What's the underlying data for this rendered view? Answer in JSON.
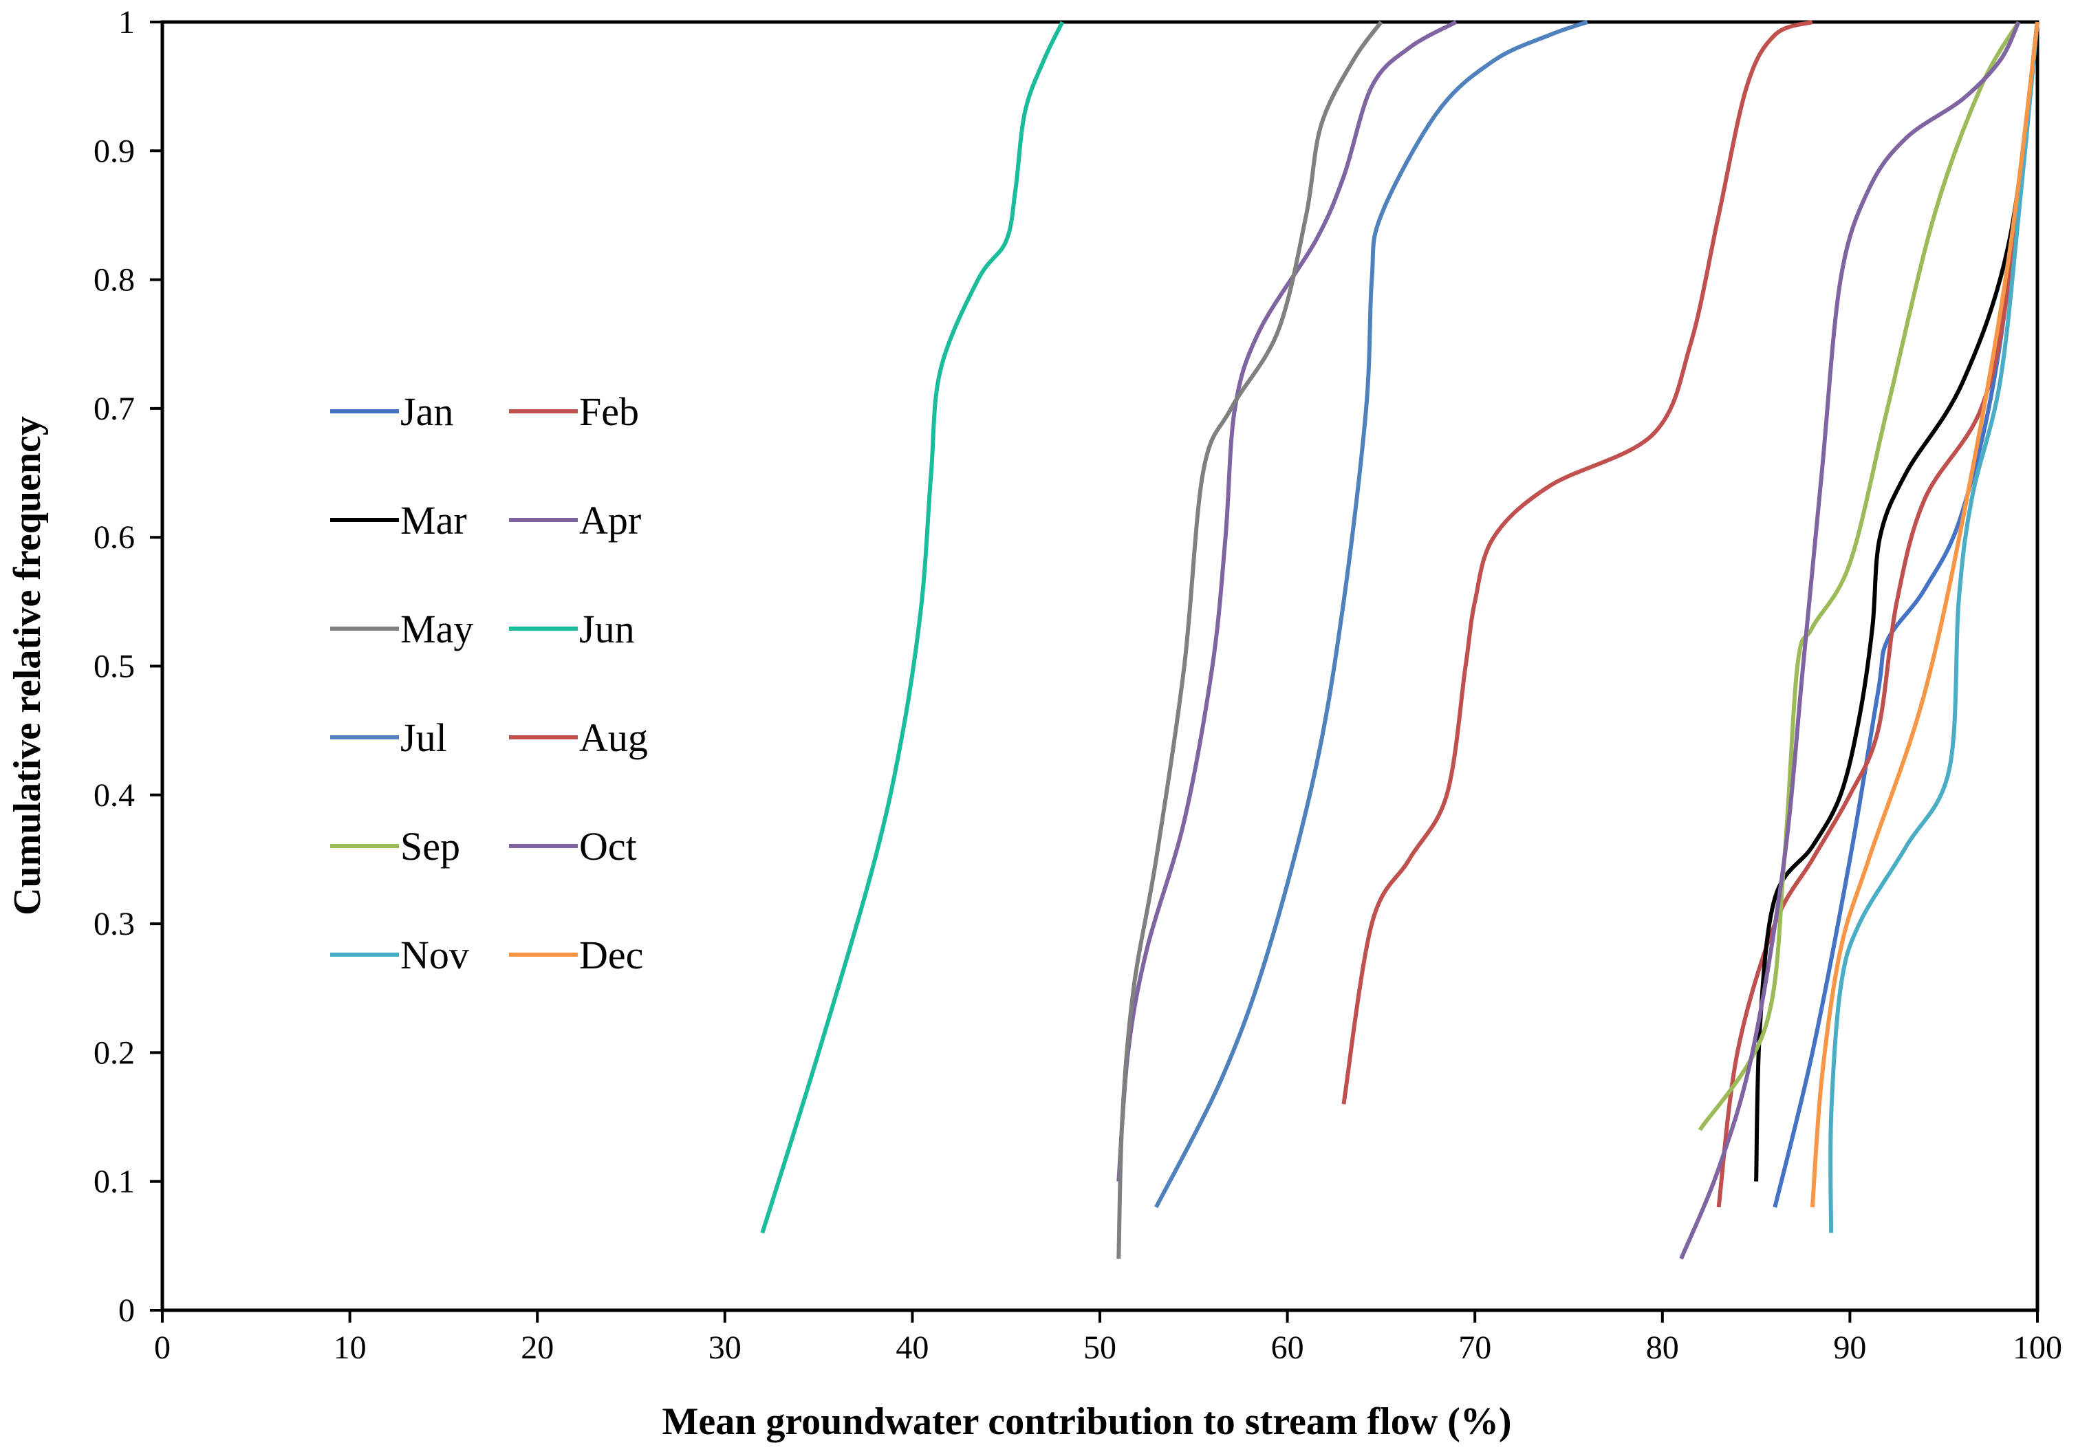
{
  "chart_data": {
    "type": "line",
    "title": "",
    "xlabel": "Mean groundwater contribution to stream flow (%)",
    "ylabel": "Cumulative relative frequency",
    "xlim": [
      0,
      100
    ],
    "ylim": [
      0,
      1
    ],
    "xticks": [
      0,
      10,
      20,
      30,
      40,
      50,
      60,
      70,
      80,
      90,
      100
    ],
    "yticks": [
      0,
      0.1,
      0.2,
      0.3,
      0.4,
      0.5,
      0.6,
      0.7,
      0.8,
      0.9,
      1
    ],
    "xtick_labels": [
      "0",
      "10",
      "20",
      "30",
      "40",
      "50",
      "60",
      "70",
      "80",
      "90",
      "100"
    ],
    "ytick_labels": [
      "0",
      "0.1",
      "0.2",
      "0.3",
      "0.4",
      "0.5",
      "0.6",
      "0.7",
      "0.8",
      "0.9",
      "1"
    ],
    "grid": false,
    "legend_position": "center-left",
    "series": [
      {
        "name": "Jan",
        "color": "#4472C4",
        "x": [
          86,
          88,
          90,
          91.5,
          92,
          94,
          96,
          98,
          100
        ],
        "y": [
          0.08,
          0.2,
          0.35,
          0.48,
          0.52,
          0.56,
          0.62,
          0.75,
          1.0
        ]
      },
      {
        "name": "Feb",
        "color": "#C0504D",
        "x": [
          83,
          84,
          86,
          88,
          90,
          91.5,
          92.5,
          94,
          97,
          98.5,
          100
        ],
        "y": [
          0.08,
          0.2,
          0.3,
          0.35,
          0.4,
          0.45,
          0.55,
          0.63,
          0.7,
          0.8,
          1.0
        ]
      },
      {
        "name": "Mar",
        "color": "#000000",
        "x": [
          85,
          85.2,
          86,
          88,
          89.5,
          90.5,
          91.2,
          91.6,
          93,
          96,
          98.5,
          100
        ],
        "y": [
          0.1,
          0.22,
          0.32,
          0.36,
          0.4,
          0.46,
          0.53,
          0.6,
          0.65,
          0.72,
          0.83,
          1.0
        ]
      },
      {
        "name": "Apr",
        "color": "#8064A2",
        "x": [
          51,
          51.5,
          52.5,
          54.5,
          56,
          56.7,
          57.2,
          58.5,
          61.5,
          63,
          64.5,
          66.5,
          69
        ],
        "y": [
          0.1,
          0.2,
          0.28,
          0.38,
          0.5,
          0.6,
          0.7,
          0.76,
          0.83,
          0.88,
          0.95,
          0.98,
          1.0
        ]
      },
      {
        "name": "May",
        "color": "#808080",
        "x": [
          51,
          51.2,
          51.8,
          53,
          54.5,
          55.5,
          57,
          59.5,
          61,
          61.8,
          63.5,
          65
        ],
        "y": [
          0.04,
          0.15,
          0.25,
          0.35,
          0.5,
          0.65,
          0.7,
          0.76,
          0.85,
          0.92,
          0.97,
          1.0
        ]
      },
      {
        "name": "Jun",
        "color": "#1ABC9C",
        "x": [
          32,
          35,
          38,
          39.5,
          40.5,
          41,
          41.5,
          43.5,
          45,
          45.5,
          46,
          47,
          48
        ],
        "y": [
          0.06,
          0.2,
          0.35,
          0.45,
          0.55,
          0.65,
          0.73,
          0.8,
          0.83,
          0.87,
          0.93,
          0.97,
          1.0
        ]
      },
      {
        "name": "Jul",
        "color": "#4F81BD",
        "x": [
          53,
          56.5,
          59,
          61.5,
          63,
          64.2,
          64.5,
          65,
          68,
          71,
          74,
          76
        ],
        "y": [
          0.08,
          0.18,
          0.28,
          0.42,
          0.55,
          0.7,
          0.8,
          0.85,
          0.93,
          0.97,
          0.99,
          1.0
        ]
      },
      {
        "name": "Aug",
        "color": "#C0504D",
        "x": [
          63,
          64.5,
          66.5,
          68.5,
          69.5,
          70,
          71,
          74,
          79.5,
          81.5,
          83,
          84.5,
          86,
          88
        ],
        "y": [
          0.16,
          0.3,
          0.35,
          0.4,
          0.5,
          0.55,
          0.6,
          0.64,
          0.68,
          0.75,
          0.85,
          0.95,
          0.99,
          1.0
        ]
      },
      {
        "name": "Sep",
        "color": "#9BBB59",
        "x": [
          82,
          85.5,
          86.5,
          87.2,
          88,
          90,
          92,
          94.5,
          97,
          99
        ],
        "y": [
          0.14,
          0.22,
          0.35,
          0.5,
          0.53,
          0.58,
          0.7,
          0.85,
          0.95,
          1.0
        ]
      },
      {
        "name": "Oct",
        "color": "#8064A2",
        "x": [
          81,
          83,
          84.8,
          86.5,
          87.5,
          88.5,
          89.5,
          91,
          93,
          96,
          98,
          99
        ],
        "y": [
          0.04,
          0.11,
          0.2,
          0.35,
          0.5,
          0.65,
          0.8,
          0.87,
          0.91,
          0.94,
          0.97,
          1.0
        ]
      },
      {
        "name": "Nov",
        "color": "#4BACC6",
        "x": [
          89,
          89,
          89.5,
          90.5,
          93,
          95.3,
          95.8,
          96.5,
          98,
          99,
          100
        ],
        "y": [
          0.06,
          0.15,
          0.25,
          0.3,
          0.36,
          0.42,
          0.55,
          0.63,
          0.72,
          0.85,
          1.0
        ]
      },
      {
        "name": "Dec",
        "color": "#F79646",
        "x": [
          88,
          88.5,
          89.5,
          91,
          94,
          96.5,
          98.5,
          100
        ],
        "y": [
          0.08,
          0.18,
          0.28,
          0.35,
          0.48,
          0.65,
          0.82,
          1.0
        ]
      }
    ]
  }
}
